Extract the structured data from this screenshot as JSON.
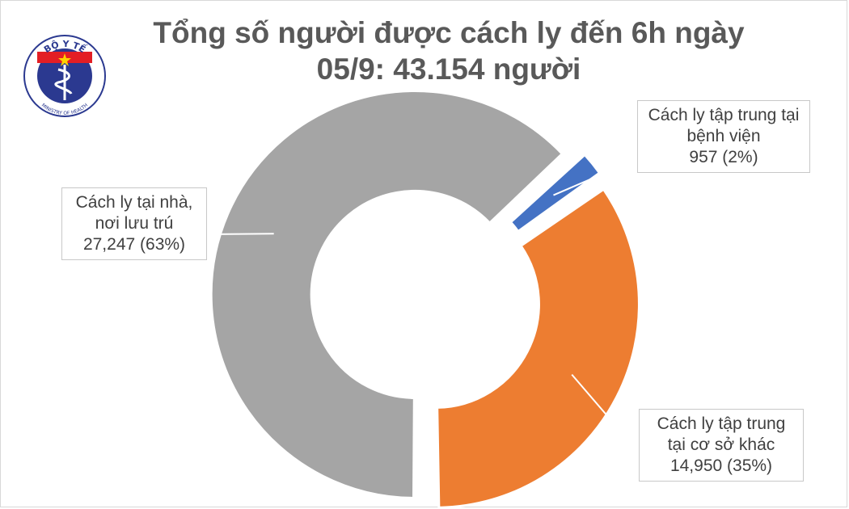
{
  "title": {
    "line1": "Tổng số người được cách ly đến 6h ngày",
    "line2": "05/9: 43.154 người"
  },
  "logo": {
    "top_text": "BỘ Y TẾ",
    "bottom_text": "MINISTRY OF HEALTH",
    "colors": {
      "ring": "#2b3990",
      "band": "#e31e24",
      "background": "#ffffff"
    }
  },
  "chart_data": {
    "type": "pie",
    "style": "donut",
    "slices": [
      {
        "label_lines": [
          "Cách ly tập trung tại",
          "bệnh viện"
        ],
        "value_text": "957 (2%)",
        "value": 957,
        "percent": 2,
        "color": "#4472c4"
      },
      {
        "label_lines": [
          "Cách ly tập trung",
          "tại cơ sở khác"
        ],
        "value_text": "14,950 (35%)",
        "value": 14950,
        "percent": 35,
        "color": "#ed7d31"
      },
      {
        "label_lines": [
          "Cách ly tại nhà,",
          "nơi lưu trú"
        ],
        "value_text": "27,247 (63%)",
        "value": 27247,
        "percent": 63,
        "color": "#a5a5a5"
      }
    ]
  }
}
